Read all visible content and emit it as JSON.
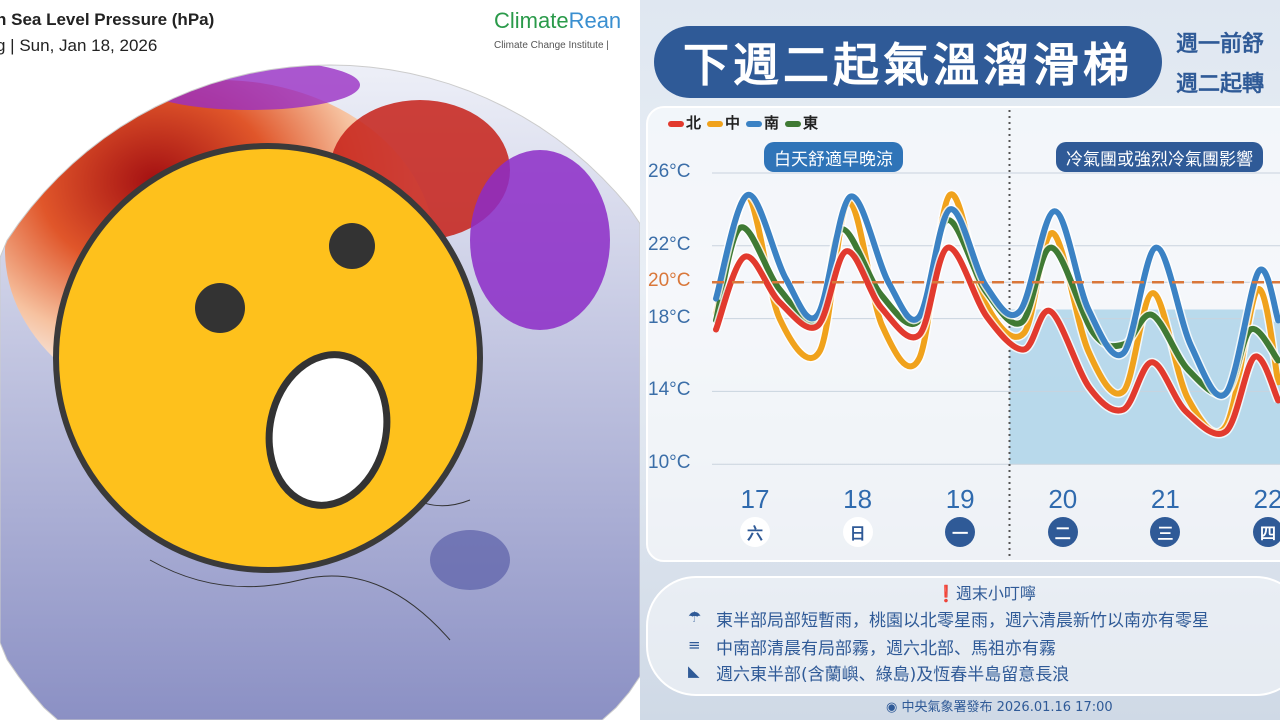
{
  "left_panel": {
    "title": "n Sea Level Pressure (hPa)",
    "subtitle": "g | Sun, Jan 18, 2026",
    "brand_green": "Climate",
    "brand_blue": "Rean",
    "institute": "Climate Change Institute |",
    "emoji": "astonished-face"
  },
  "right_panel": {
    "headline": "下週二起氣溫溜滑梯",
    "sub_lines": [
      "週一前舒",
      "週二起轉"
    ],
    "banner_left": "白天舒適早晚涼",
    "banner_right": "冷氣團或強烈冷氣團影響",
    "notes_title": "週末小叮嚀",
    "notes": [
      {
        "icon": "rain-cloud-icon",
        "text": "東半部局部短暫雨，桃園以北零星雨，週六清晨新竹以南亦有零星"
      },
      {
        "icon": "fog-icon",
        "text": "中南部清晨有局部霧，週六北部、馬祖亦有霧"
      },
      {
        "icon": "wave-icon",
        "text": "週六東半部(含蘭嶼、綠島)及恆春半島留意長浪"
      }
    ],
    "footer": "中央氣象署發布 2026.01.16 17:00"
  },
  "chart_data": {
    "type": "line",
    "ylim": [
      10,
      26
    ],
    "y_ticks": [
      "26°C",
      "22°C",
      "20°C",
      "18°C",
      "14°C",
      "10°C"
    ],
    "y_tick_values": [
      26,
      22,
      20,
      18,
      14,
      10
    ],
    "reference_line": {
      "value": 20,
      "label": "20°C",
      "color": "#d9773a"
    },
    "categories": [
      "17",
      "18",
      "19",
      "20",
      "21",
      "22"
    ],
    "weekdays": [
      "六",
      "日",
      "一",
      "二",
      "三",
      "四"
    ],
    "cold_period_from_day": 19.5,
    "series": [
      {
        "name": "北",
        "color": "#e23a2e",
        "points": [
          [
            16.62,
            17.4
          ],
          [
            16.9,
            21.4
          ],
          [
            17.24,
            18.9
          ],
          [
            17.61,
            17.6
          ],
          [
            17.89,
            21.7
          ],
          [
            18.23,
            18.6
          ],
          [
            18.6,
            17.1
          ],
          [
            18.88,
            21.9
          ],
          [
            19.26,
            18.1
          ],
          [
            19.62,
            16.3
          ],
          [
            19.88,
            18.4
          ],
          [
            20.26,
            14.2
          ],
          [
            20.59,
            13.0
          ],
          [
            20.87,
            15.6
          ],
          [
            21.2,
            12.9
          ],
          [
            21.59,
            11.8
          ],
          [
            21.87,
            15.9
          ],
          [
            22.1,
            13.5
          ]
        ]
      },
      {
        "name": "中",
        "color": "#f0a21c",
        "points": [
          [
            16.62,
            18.3
          ],
          [
            16.92,
            24.7
          ],
          [
            17.24,
            18.0
          ],
          [
            17.63,
            16.2
          ],
          [
            17.91,
            24.4
          ],
          [
            18.24,
            17.6
          ],
          [
            18.6,
            15.8
          ],
          [
            18.9,
            24.8
          ],
          [
            19.25,
            18.8
          ],
          [
            19.62,
            17.2
          ],
          [
            19.9,
            22.7
          ],
          [
            20.25,
            16.2
          ],
          [
            20.59,
            14.0
          ],
          [
            20.88,
            19.4
          ],
          [
            21.22,
            13.6
          ],
          [
            21.59,
            12.1
          ],
          [
            21.9,
            19.6
          ],
          [
            22.1,
            14.5
          ]
        ]
      },
      {
        "name": "南",
        "color": "#3b82c4",
        "points": [
          [
            16.62,
            19.1
          ],
          [
            16.93,
            24.8
          ],
          [
            17.3,
            20.2
          ],
          [
            17.61,
            18.2
          ],
          [
            17.93,
            24.7
          ],
          [
            18.3,
            20.0
          ],
          [
            18.6,
            18.1
          ],
          [
            18.9,
            24.0
          ],
          [
            19.25,
            19.8
          ],
          [
            19.58,
            18.4
          ],
          [
            19.92,
            23.9
          ],
          [
            20.25,
            18.5
          ],
          [
            20.59,
            16.1
          ],
          [
            20.91,
            21.9
          ],
          [
            21.25,
            16.5
          ],
          [
            21.59,
            13.9
          ],
          [
            21.91,
            20.6
          ],
          [
            22.1,
            17.9
          ]
        ]
      },
      {
        "name": "東",
        "color": "#3f7a34",
        "points": [
          [
            16.62,
            17.9
          ],
          [
            16.86,
            23.0
          ],
          [
            17.24,
            19.6
          ],
          [
            17.62,
            17.9
          ],
          [
            17.84,
            22.9
          ],
          [
            18.23,
            19.3
          ],
          [
            18.6,
            17.9
          ],
          [
            18.87,
            23.4
          ],
          [
            19.25,
            19.5
          ],
          [
            19.6,
            17.8
          ],
          [
            19.89,
            21.9
          ],
          [
            20.3,
            17.2
          ],
          [
            20.6,
            16.6
          ],
          [
            20.87,
            18.2
          ],
          [
            21.22,
            15.2
          ],
          [
            21.59,
            13.9
          ],
          [
            21.83,
            17.4
          ],
          [
            22.1,
            15.7
          ]
        ]
      }
    ]
  }
}
